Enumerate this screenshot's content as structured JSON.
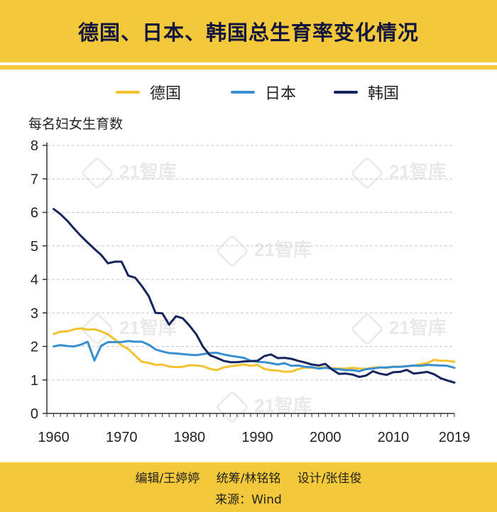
{
  "title": "德国、日本、韩国总生育率变化情况",
  "watermark": "21智库",
  "footer": {
    "editor": "编辑/王婷婷",
    "coordinator": "统筹/林铭铭",
    "designer": "设计/张佳俊",
    "source": "来源：Wind"
  },
  "colors": {
    "germany": "#f2c230",
    "japan": "#3a8fd0",
    "korea": "#18245e",
    "accent": "#f3c83a"
  },
  "chart_data": {
    "type": "line",
    "ylabel": "每名妇女生育数",
    "xlabel": "",
    "xlim": [
      1959,
      2019
    ],
    "ylim": [
      0,
      8
    ],
    "yticks": [
      0,
      1,
      2,
      3,
      4,
      5,
      6,
      7,
      8
    ],
    "xticks": [
      1960,
      1970,
      1980,
      1990,
      2000,
      2010,
      2019
    ],
    "grid": "horizontal dashed",
    "legend_position": "top",
    "x": [
      1960,
      1961,
      1962,
      1963,
      1964,
      1965,
      1966,
      1967,
      1968,
      1969,
      1970,
      1971,
      1972,
      1973,
      1974,
      1975,
      1976,
      1977,
      1978,
      1979,
      1980,
      1981,
      1982,
      1983,
      1984,
      1985,
      1986,
      1987,
      1988,
      1989,
      1990,
      1991,
      1992,
      1993,
      1994,
      1995,
      1996,
      1997,
      1998,
      1999,
      2000,
      2001,
      2002,
      2003,
      2004,
      2005,
      2006,
      2007,
      2008,
      2009,
      2010,
      2011,
      2012,
      2013,
      2014,
      2015,
      2016,
      2017,
      2018,
      2019
    ],
    "series": [
      {
        "name": "德国",
        "color_key": "germany",
        "values": [
          2.37,
          2.44,
          2.45,
          2.51,
          2.54,
          2.5,
          2.51,
          2.45,
          2.36,
          2.21,
          2.03,
          1.92,
          1.72,
          1.54,
          1.51,
          1.45,
          1.46,
          1.4,
          1.38,
          1.39,
          1.44,
          1.43,
          1.41,
          1.33,
          1.29,
          1.37,
          1.41,
          1.43,
          1.46,
          1.42,
          1.45,
          1.33,
          1.29,
          1.28,
          1.24,
          1.25,
          1.32,
          1.37,
          1.36,
          1.36,
          1.38,
          1.35,
          1.34,
          1.34,
          1.36,
          1.34,
          1.33,
          1.37,
          1.38,
          1.36,
          1.39,
          1.39,
          1.41,
          1.42,
          1.47,
          1.5,
          1.6,
          1.57,
          1.57,
          1.54
        ]
      },
      {
        "name": "日本",
        "color_key": "japan",
        "values": [
          2.0,
          2.04,
          2.01,
          2.0,
          2.05,
          2.14,
          1.58,
          2.02,
          2.13,
          2.13,
          2.13,
          2.16,
          2.14,
          2.14,
          2.05,
          1.91,
          1.85,
          1.8,
          1.79,
          1.77,
          1.75,
          1.74,
          1.77,
          1.8,
          1.81,
          1.76,
          1.72,
          1.69,
          1.66,
          1.57,
          1.54,
          1.53,
          1.5,
          1.46,
          1.5,
          1.42,
          1.43,
          1.39,
          1.38,
          1.34,
          1.36,
          1.33,
          1.32,
          1.29,
          1.29,
          1.26,
          1.32,
          1.34,
          1.37,
          1.37,
          1.39,
          1.39,
          1.41,
          1.43,
          1.42,
          1.45,
          1.44,
          1.43,
          1.42,
          1.36
        ]
      },
      {
        "name": "韩国",
        "color_key": "korea",
        "values": [
          6.1,
          5.95,
          5.75,
          5.52,
          5.3,
          5.1,
          4.91,
          4.73,
          4.48,
          4.53,
          4.53,
          4.11,
          4.05,
          3.8,
          3.5,
          3.0,
          2.99,
          2.65,
          2.9,
          2.84,
          2.62,
          2.36,
          1.99,
          1.74,
          1.66,
          1.57,
          1.53,
          1.53,
          1.55,
          1.56,
          1.57,
          1.71,
          1.76,
          1.65,
          1.66,
          1.63,
          1.57,
          1.52,
          1.46,
          1.43,
          1.48,
          1.31,
          1.18,
          1.19,
          1.16,
          1.09,
          1.13,
          1.26,
          1.19,
          1.15,
          1.23,
          1.24,
          1.3,
          1.19,
          1.21,
          1.24,
          1.17,
          1.05,
          0.98,
          0.92
        ]
      }
    ]
  }
}
